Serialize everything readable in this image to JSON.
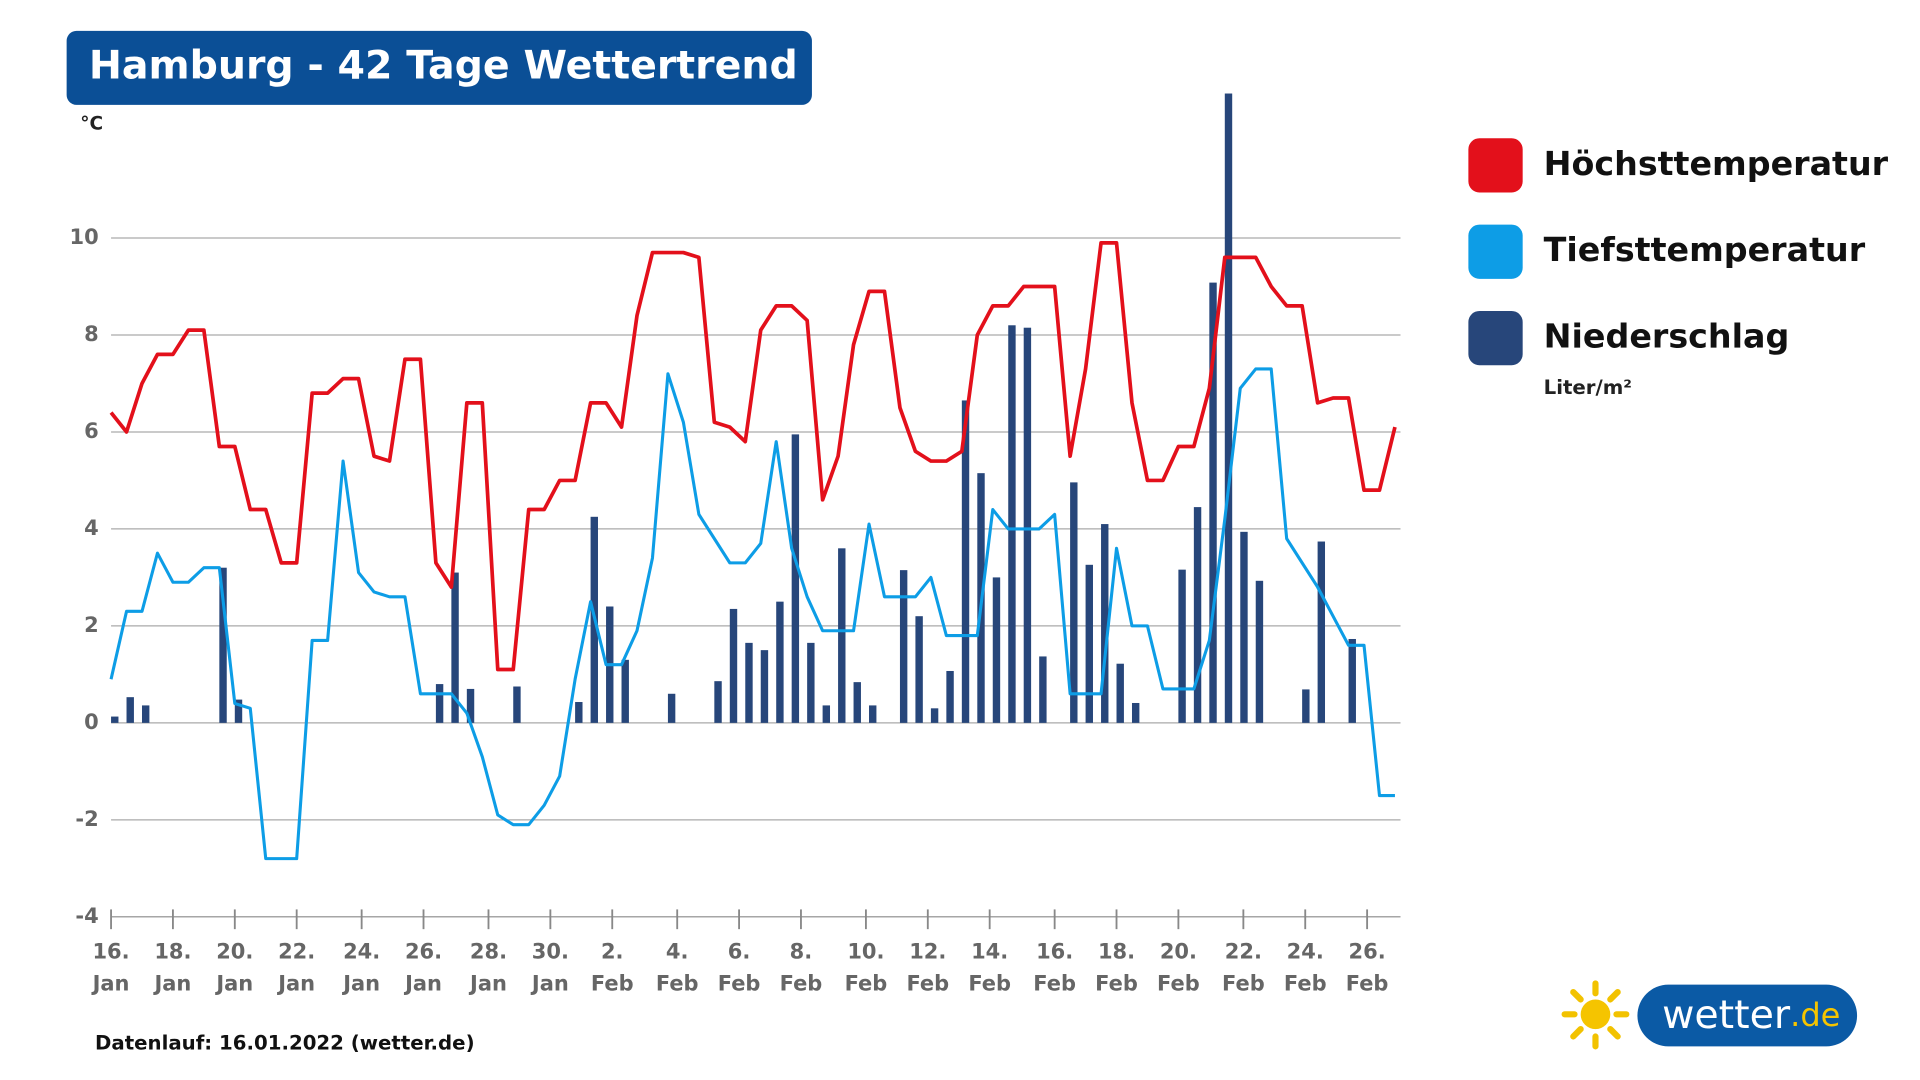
{
  "chart_data": {
    "type": "line",
    "title": "Hamburg - 42 Tage Wettertrend",
    "y_unit": "°C",
    "precip_unit": "Liter/m²",
    "footer": "Datenlauf: 16.01.2022 (wetter.de)",
    "logo": {
      "name": "wetter",
      "tld": ".de"
    },
    "grid": true,
    "xlim": [
      0,
      41.6
    ],
    "ylim": [
      -4,
      13
    ],
    "yticks": [
      -4,
      -2,
      0,
      2,
      4,
      6,
      8,
      10
    ],
    "xticks": [
      {
        "value": 0,
        "label": "16.",
        "month": "Jan"
      },
      {
        "value": 2.0,
        "label": "18.",
        "month": "Jan"
      },
      {
        "value": 4.0,
        "label": "20.",
        "month": "Jan"
      },
      {
        "value": 6.0,
        "label": "22.",
        "month": "Jan"
      },
      {
        "value": 8.1,
        "label": "24.",
        "month": "Jan"
      },
      {
        "value": 10.1,
        "label": "26.",
        "month": "Jan"
      },
      {
        "value": 12.2,
        "label": "28.",
        "month": "Jan"
      },
      {
        "value": 14.2,
        "label": "30.",
        "month": "Jan"
      },
      {
        "value": 16.2,
        "label": "2.",
        "month": "Feb"
      },
      {
        "value": 18.3,
        "label": "4.",
        "month": "Feb"
      },
      {
        "value": 20.3,
        "label": "6.",
        "month": "Feb"
      },
      {
        "value": 22.3,
        "label": "8.",
        "month": "Feb"
      },
      {
        "value": 24.4,
        "label": "10.",
        "month": "Feb"
      },
      {
        "value": 26.4,
        "label": "12.",
        "month": "Feb"
      },
      {
        "value": 28.4,
        "label": "14.",
        "month": "Feb"
      },
      {
        "value": 30.5,
        "label": "16.",
        "month": "Feb"
      },
      {
        "value": 32.5,
        "label": "18.",
        "month": "Feb"
      },
      {
        "value": 34.5,
        "label": "20.",
        "month": "Feb"
      },
      {
        "value": 36.6,
        "label": "22.",
        "month": "Feb"
      },
      {
        "value": 38.6,
        "label": "24.",
        "month": "Feb"
      },
      {
        "value": 40.6,
        "label": "26.",
        "month": "Feb"
      }
    ],
    "x": [
      0,
      0.5,
      1,
      1.5,
      2,
      2.5,
      3,
      3.5,
      4,
      4.5,
      5,
      5.5,
      6,
      6.5,
      7,
      7.5,
      8,
      8.5,
      9,
      9.5,
      10,
      10.5,
      11,
      11.5,
      12,
      12.5,
      13,
      13.5,
      14,
      14.5,
      15,
      15.5,
      16,
      16.5,
      17,
      17.5,
      18,
      18.5,
      19,
      19.5,
      20,
      20.5,
      21,
      21.5,
      22,
      22.5,
      23,
      23.5,
      24,
      24.5,
      25,
      25.5,
      26,
      26.5,
      27,
      27.5,
      28,
      28.5,
      29,
      29.5,
      30,
      30.5,
      31,
      31.5,
      32,
      32.5,
      33,
      33.5,
      34,
      34.5,
      35,
      35.5,
      36,
      36.5,
      37,
      37.5,
      38,
      38.5,
      39,
      39.5,
      40,
      40.5,
      41,
      41.5
    ],
    "series": [
      {
        "name": "Höchsttemperatur",
        "color": "#e3101b",
        "type": "line",
        "values": [
          6.4,
          6.0,
          7.0,
          7.6,
          7.6,
          8.1,
          8.1,
          5.7,
          5.7,
          4.4,
          4.4,
          3.3,
          3.3,
          6.8,
          6.8,
          7.1,
          7.1,
          5.5,
          5.4,
          7.5,
          7.5,
          3.3,
          2.8,
          6.6,
          6.6,
          1.1,
          1.1,
          4.4,
          4.4,
          5.0,
          5.0,
          6.6,
          6.6,
          6.1,
          8.4,
          9.7,
          9.7,
          9.7,
          9.6,
          6.2,
          6.1,
          5.8,
          8.1,
          8.6,
          8.6,
          8.3,
          4.6,
          5.5,
          7.8,
          8.9,
          8.9,
          6.5,
          5.6,
          5.4,
          5.4,
          5.6,
          8.0,
          8.6,
          8.6,
          9.0,
          9.0,
          9.0,
          5.5,
          7.3,
          9.9,
          9.9,
          6.6,
          5.0,
          5.0,
          5.7,
          5.7,
          6.9,
          9.6,
          9.6,
          9.6,
          9.0,
          8.6,
          8.6,
          6.6,
          6.7,
          6.7,
          4.8,
          4.8,
          6.1
        ]
      },
      {
        "name": "Tiefsttemperatur",
        "color": "#0d9de6",
        "type": "line",
        "values": [
          0.9,
          2.3,
          2.3,
          3.5,
          2.9,
          2.9,
          3.2,
          3.2,
          0.4,
          0.3,
          -2.8,
          -2.8,
          -2.8,
          1.7,
          1.7,
          5.4,
          3.1,
          2.7,
          2.6,
          2.6,
          0.6,
          0.6,
          0.6,
          0.2,
          -0.7,
          -1.9,
          -2.1,
          -2.1,
          -1.7,
          -1.1,
          0.9,
          2.5,
          1.2,
          1.2,
          1.9,
          3.4,
          7.2,
          6.2,
          4.3,
          3.8,
          3.3,
          3.3,
          3.7,
          5.8,
          3.6,
          2.6,
          1.9,
          1.9,
          1.9,
          4.1,
          2.6,
          2.6,
          2.6,
          3.0,
          1.8,
          1.8,
          1.8,
          4.4,
          4.0,
          4.0,
          4.0,
          4.3,
          0.6,
          0.6,
          0.6,
          3.6,
          2.0,
          2.0,
          0.7,
          0.7,
          0.7,
          1.7,
          4.2,
          6.9,
          7.3,
          7.3,
          3.8,
          3.3,
          2.8,
          2.2,
          1.6,
          1.6,
          -1.5,
          -1.5
        ]
      },
      {
        "name": "Niederschlag",
        "color": "#27467a",
        "type": "bar",
        "x": [
          0,
          0.5,
          1,
          3.5,
          4,
          10.5,
          11,
          11.5,
          13,
          15,
          15.5,
          16,
          16.5,
          18,
          19.5,
          20,
          20.5,
          21,
          21.5,
          22,
          22.5,
          23,
          23.5,
          24,
          24.5,
          25.5,
          26,
          26.5,
          27,
          27.5,
          28,
          28.5,
          29,
          29.5,
          30,
          31,
          31.5,
          32,
          32.5,
          33,
          34.5,
          35,
          35.5,
          36,
          36.5,
          37,
          38.5,
          39,
          40
        ],
        "values": [
          0.13,
          0.53,
          0.36,
          3.2,
          0.48,
          0.8,
          3.1,
          0.7,
          0.75,
          0.43,
          4.25,
          2.4,
          1.3,
          0.6,
          0.86,
          2.35,
          1.65,
          1.5,
          2.5,
          5.95,
          1.65,
          0.36,
          3.6,
          0.84,
          0.36,
          3.15,
          2.2,
          0.3,
          1.07,
          6.65,
          5.15,
          3.0,
          8.2,
          8.15,
          1.37,
          4.96,
          3.26,
          4.1,
          1.22,
          0.41,
          3.16,
          4.45,
          9.08,
          12.98,
          3.94,
          2.93,
          0.69,
          3.74,
          1.73
        ]
      }
    ]
  }
}
